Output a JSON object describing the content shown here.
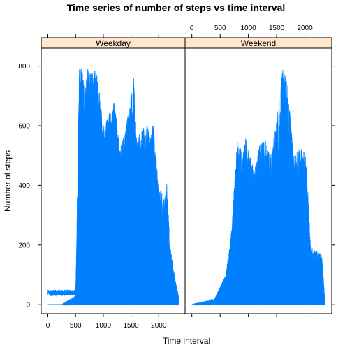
{
  "chart_data": {
    "type": "line",
    "title": "Time series of number of steps vs time interval",
    "xlabel": "Time interval",
    "ylabel": "Number of steps",
    "xlim": [
      -120,
      2475
    ],
    "ylim": [
      -30,
      860
    ],
    "x_ticks": [
      0,
      500,
      1000,
      1500,
      2000
    ],
    "y_ticks": [
      0,
      200,
      400,
      600,
      800
    ],
    "panels": [
      {
        "name": "Weekday",
        "series_color": "#0080ff",
        "segments": [
          {
            "x": 0,
            "y": 0
          },
          {
            "x": 250,
            "y": 0
          },
          {
            "x": 500,
            "y": 30
          },
          {
            "x": 520,
            "y": 220
          },
          {
            "x": 560,
            "y": 790
          },
          {
            "x": 610,
            "y": 810
          },
          {
            "x": 660,
            "y": 720
          },
          {
            "x": 720,
            "y": 790
          },
          {
            "x": 800,
            "y": 780
          },
          {
            "x": 850,
            "y": 800
          },
          {
            "x": 900,
            "y": 760
          },
          {
            "x": 1000,
            "y": 600
          },
          {
            "x": 1100,
            "y": 640
          },
          {
            "x": 1200,
            "y": 680
          },
          {
            "x": 1300,
            "y": 520
          },
          {
            "x": 1400,
            "y": 590
          },
          {
            "x": 1500,
            "y": 700
          },
          {
            "x": 1550,
            "y": 760
          },
          {
            "x": 1600,
            "y": 560
          },
          {
            "x": 1700,
            "y": 590
          },
          {
            "x": 1800,
            "y": 600
          },
          {
            "x": 1850,
            "y": 560
          },
          {
            "x": 1900,
            "y": 610
          },
          {
            "x": 2000,
            "y": 400
          },
          {
            "x": 2100,
            "y": 350
          },
          {
            "x": 2150,
            "y": 420
          },
          {
            "x": 2200,
            "y": 200
          },
          {
            "x": 2300,
            "y": 80
          },
          {
            "x": 2355,
            "y": 30
          }
        ]
      },
      {
        "name": "Weekend",
        "series_color": "#0080ff",
        "segments": [
          {
            "x": 0,
            "y": 0
          },
          {
            "x": 400,
            "y": 20
          },
          {
            "x": 600,
            "y": 100
          },
          {
            "x": 700,
            "y": 250
          },
          {
            "x": 800,
            "y": 550
          },
          {
            "x": 850,
            "y": 540
          },
          {
            "x": 900,
            "y": 500
          },
          {
            "x": 950,
            "y": 560
          },
          {
            "x": 1000,
            "y": 520
          },
          {
            "x": 1100,
            "y": 450
          },
          {
            "x": 1200,
            "y": 540
          },
          {
            "x": 1300,
            "y": 550
          },
          {
            "x": 1400,
            "y": 500
          },
          {
            "x": 1500,
            "y": 620
          },
          {
            "x": 1600,
            "y": 790
          },
          {
            "x": 1650,
            "y": 780
          },
          {
            "x": 1700,
            "y": 730
          },
          {
            "x": 1800,
            "y": 500
          },
          {
            "x": 1900,
            "y": 520
          },
          {
            "x": 2000,
            "y": 530
          },
          {
            "x": 2050,
            "y": 400
          },
          {
            "x": 2100,
            "y": 200
          },
          {
            "x": 2200,
            "y": 180
          },
          {
            "x": 2300,
            "y": 170
          },
          {
            "x": 2355,
            "y": 0
          }
        ]
      }
    ]
  }
}
